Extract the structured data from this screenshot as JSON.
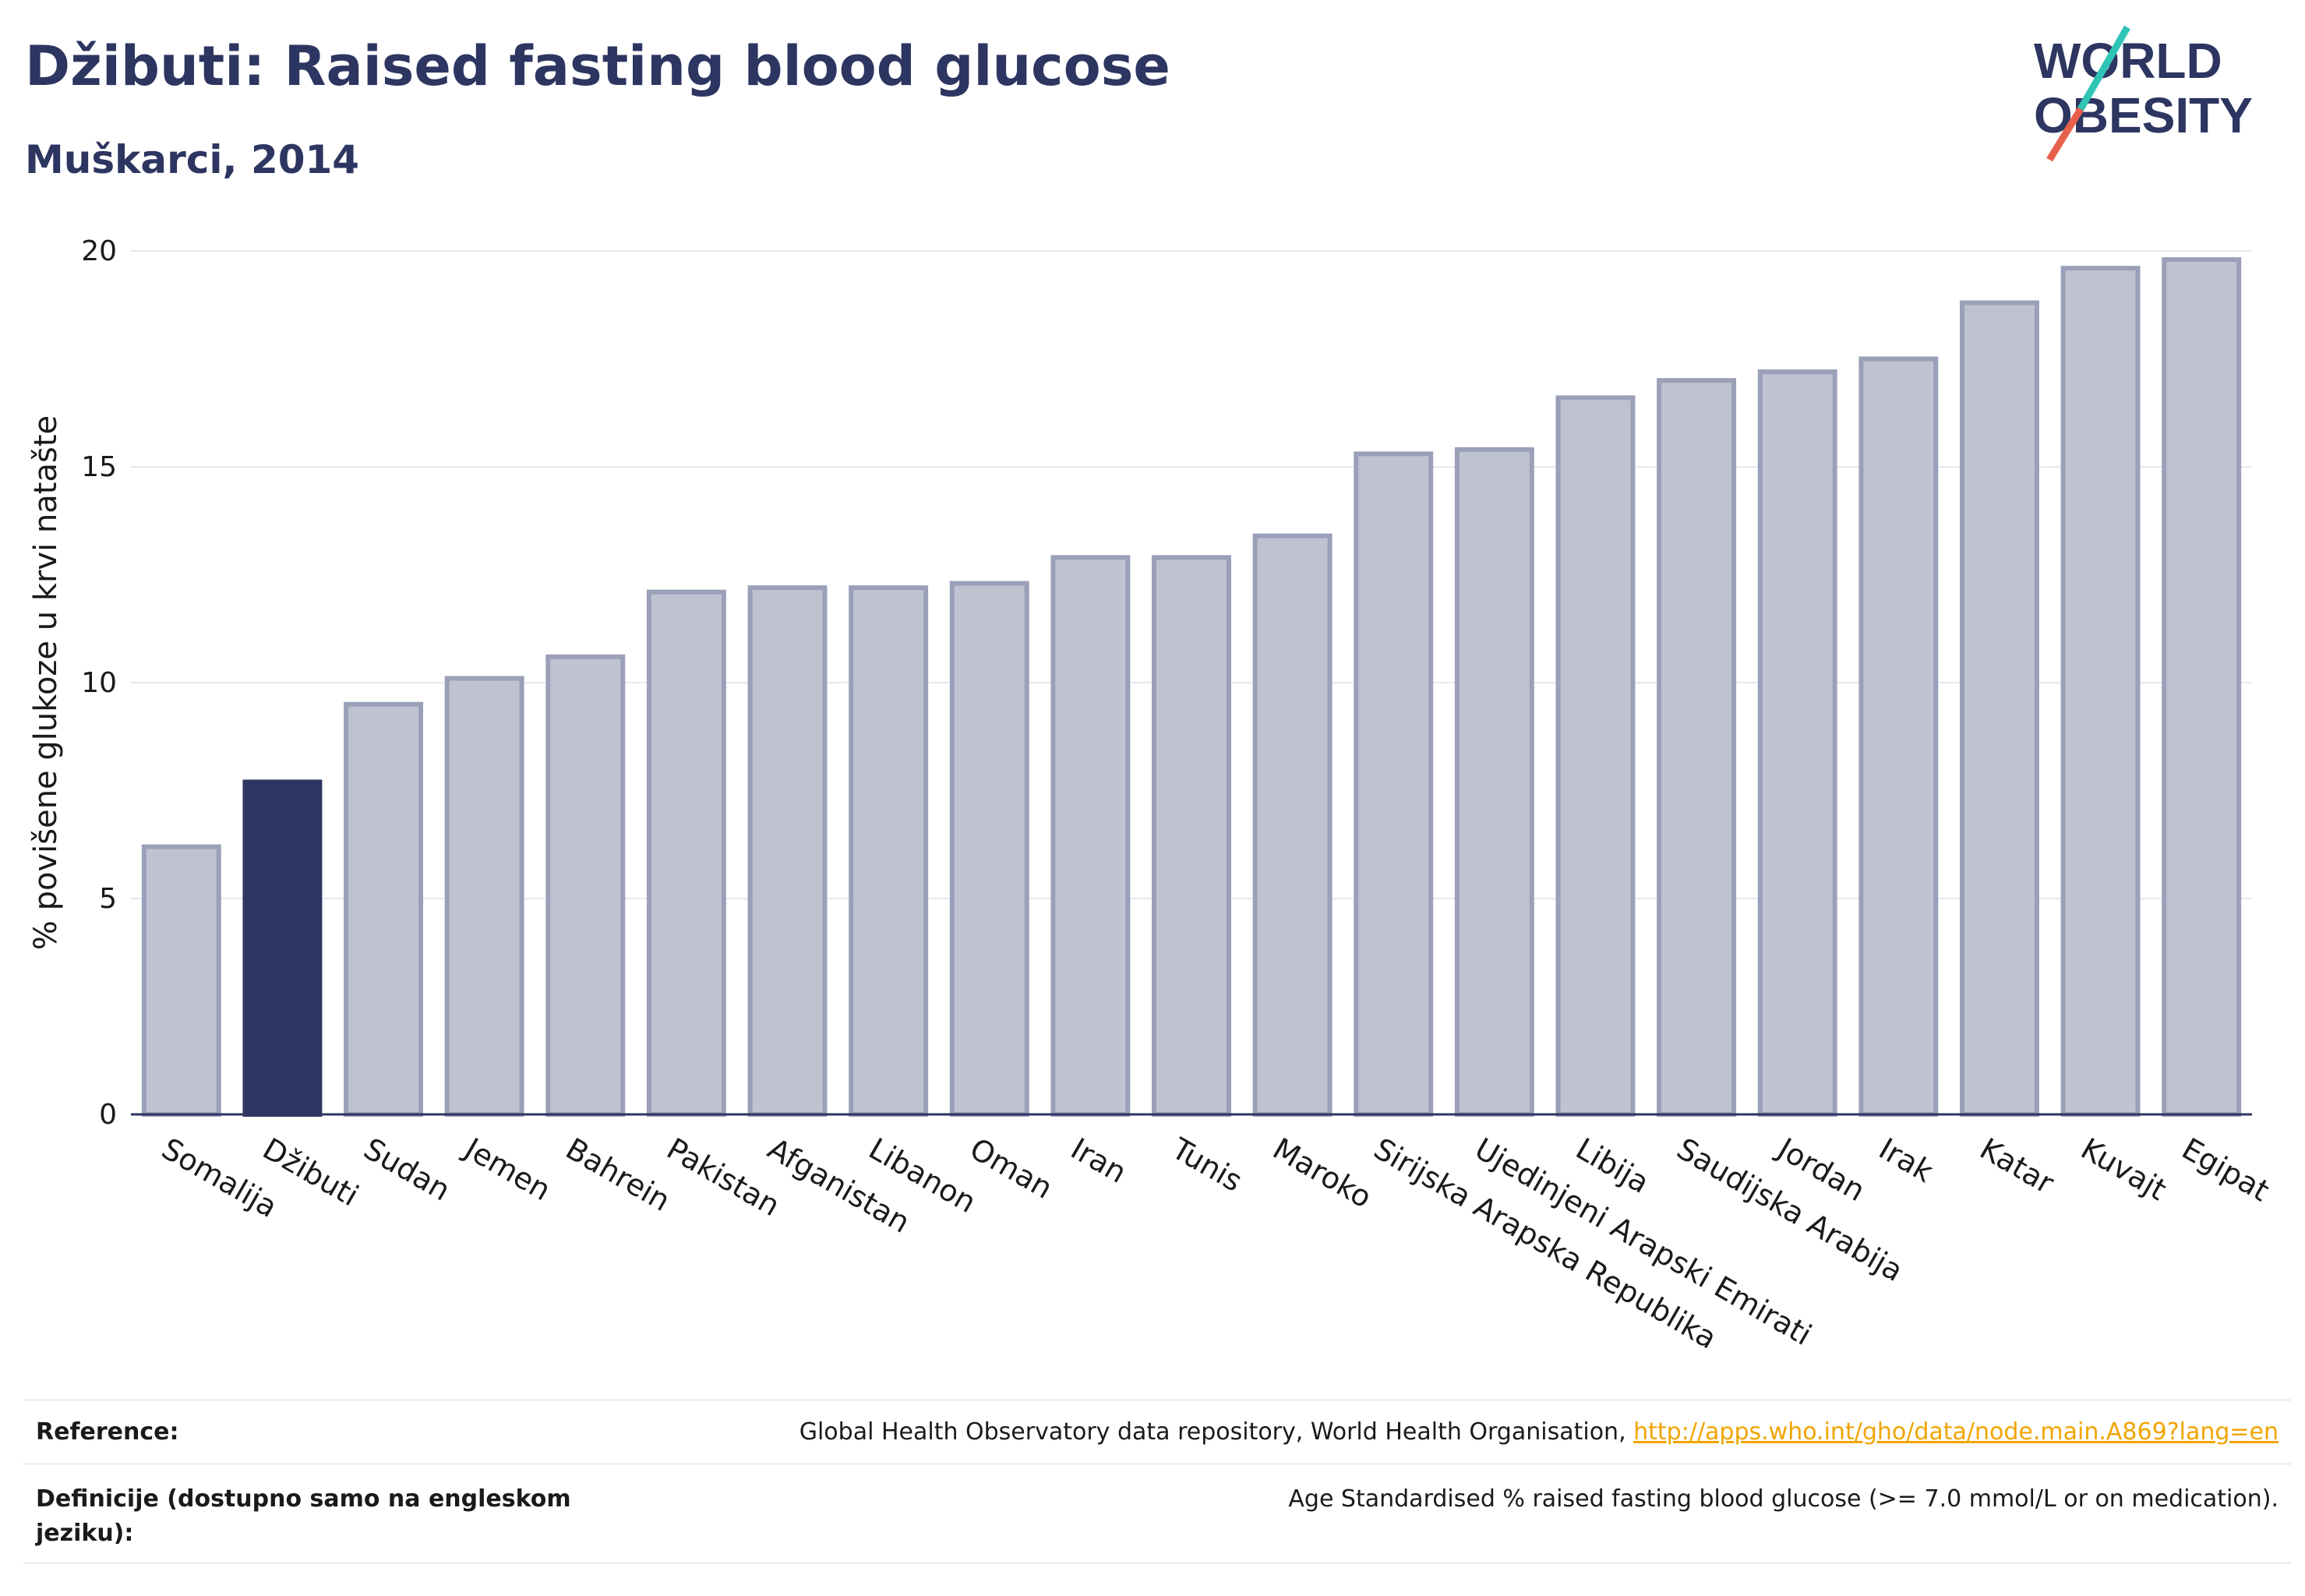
{
  "header": {
    "title": "Džibuti: Raised fasting blood glucose",
    "subtitle": "Muškarci, 2014"
  },
  "logo": {
    "line1": "WORLD",
    "line2": "OBESITY",
    "text_color": "#2d3561",
    "slash_colors": [
      "#2ec4b6",
      "#e8604c"
    ]
  },
  "chart_data": {
    "type": "bar",
    "categories": [
      "Somalija",
      "Džibuti",
      "Sudan",
      "Jemen",
      "Bahrein",
      "Pakistan",
      "Afganistan",
      "Libanon",
      "Oman",
      "Iran",
      "Tunis",
      "Maroko",
      "Sirijska Arapska Republika",
      "Ujedinjeni Arapski Emirati",
      "Libija",
      "Saudijska Arabija",
      "Jordan",
      "Irak",
      "Katar",
      "Kuvajt",
      "Egipat"
    ],
    "values": [
      6.2,
      7.7,
      9.5,
      10.1,
      10.6,
      12.1,
      12.2,
      12.2,
      12.3,
      12.9,
      12.9,
      13.4,
      15.3,
      15.4,
      16.6,
      17.0,
      17.2,
      17.5,
      18.8,
      19.6,
      19.8
    ],
    "highlight": "Džibuti",
    "ylabel": "% povišene glukoze u krvi natašte",
    "ylim": [
      0,
      20
    ],
    "yticks": [
      0,
      5,
      10,
      15,
      20
    ],
    "grid": true,
    "colors": {
      "bar": "#bfc2d0",
      "bar_border": "#9aa0b8",
      "highlight": "#2d3561",
      "grid": "#e6e8ee",
      "axis": "#2d3561"
    }
  },
  "footer": {
    "reference_label": "Reference:",
    "reference_text": "Global Health Observatory data repository, World Health Organisation, ",
    "reference_link": "http://apps.who.int/gho/data/node.main.A869?lang=en",
    "definition_label": "Definicije (dostupno samo na engleskom jeziku):",
    "definition_text": "Age Standardised % raised fasting blood glucose (>= 7.0 mmol/L or on medication)."
  }
}
